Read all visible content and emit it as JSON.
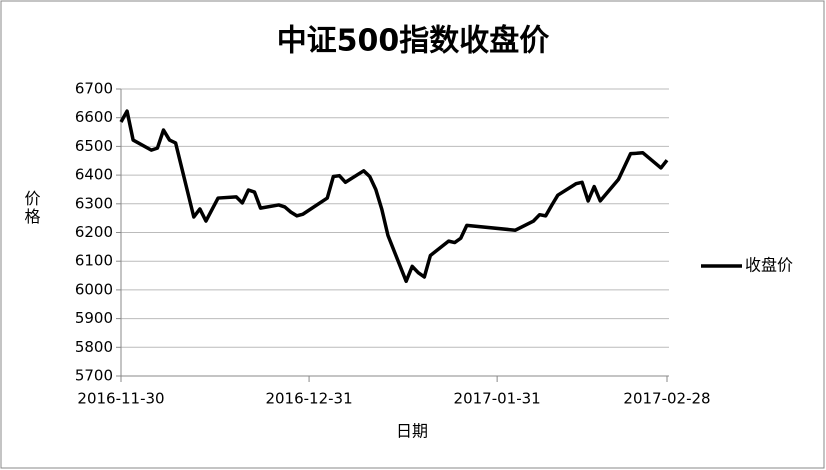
{
  "chart_data": {
    "type": "line",
    "title": "中证500指数收盘价",
    "x_label": "日期",
    "y_label": "价格",
    "x": [
      "2016-11-30",
      "2016-12-01",
      "2016-12-02",
      "2016-12-05",
      "2016-12-06",
      "2016-12-07",
      "2016-12-08",
      "2016-12-09",
      "2016-12-12",
      "2016-12-13",
      "2016-12-14",
      "2016-12-15",
      "2016-12-16",
      "2016-12-19",
      "2016-12-20",
      "2016-12-21",
      "2016-12-22",
      "2016-12-23",
      "2016-12-26",
      "2016-12-27",
      "2016-12-28",
      "2016-12-29",
      "2016-12-30",
      "2017-01-03",
      "2017-01-04",
      "2017-01-05",
      "2017-01-06",
      "2017-01-09",
      "2017-01-10",
      "2017-01-11",
      "2017-01-12",
      "2017-01-13",
      "2017-01-16",
      "2017-01-17",
      "2017-01-18",
      "2017-01-19",
      "2017-01-20",
      "2017-01-23",
      "2017-01-24",
      "2017-01-25",
      "2017-01-26",
      "2017-02-03",
      "2017-02-06",
      "2017-02-07",
      "2017-02-08",
      "2017-02-09",
      "2017-02-10",
      "2017-02-13",
      "2017-02-14",
      "2017-02-15",
      "2017-02-16",
      "2017-02-17",
      "2017-02-20",
      "2017-02-21",
      "2017-02-22",
      "2017-02-23",
      "2017-02-24",
      "2017-02-27",
      "2017-02-28"
    ],
    "series": [
      {
        "name": "收盘价",
        "color": "#000000",
        "values": [
          6585,
          6623,
          6522,
          6487,
          6494,
          6557,
          6522,
          6512,
          6254,
          6282,
          6240,
          6280,
          6320,
          6324,
          6303,
          6348,
          6341,
          6285,
          6296,
          6289,
          6271,
          6258,
          6264,
          6320,
          6395,
          6398,
          6375,
          6415,
          6395,
          6350,
          6280,
          6190,
          6030,
          6082,
          6060,
          6045,
          6120,
          6170,
          6165,
          6180,
          6225,
          6208,
          6240,
          6262,
          6258,
          6295,
          6330,
          6370,
          6375,
          6310,
          6360,
          6310,
          6385,
          6430,
          6475,
          6476,
          6478,
          6425,
          6452
        ]
      }
    ],
    "xlim": [
      "2016-11-30",
      "2017-02-28"
    ],
    "xticks": [
      "2016-11-30",
      "2016-12-31",
      "2017-01-31",
      "2017-02-28"
    ],
    "ylim": [
      5700,
      6700
    ],
    "yticks": [
      5700,
      5800,
      5900,
      6000,
      6100,
      6200,
      6300,
      6400,
      6500,
      6600,
      6700
    ],
    "grid": true,
    "legend": "right"
  }
}
